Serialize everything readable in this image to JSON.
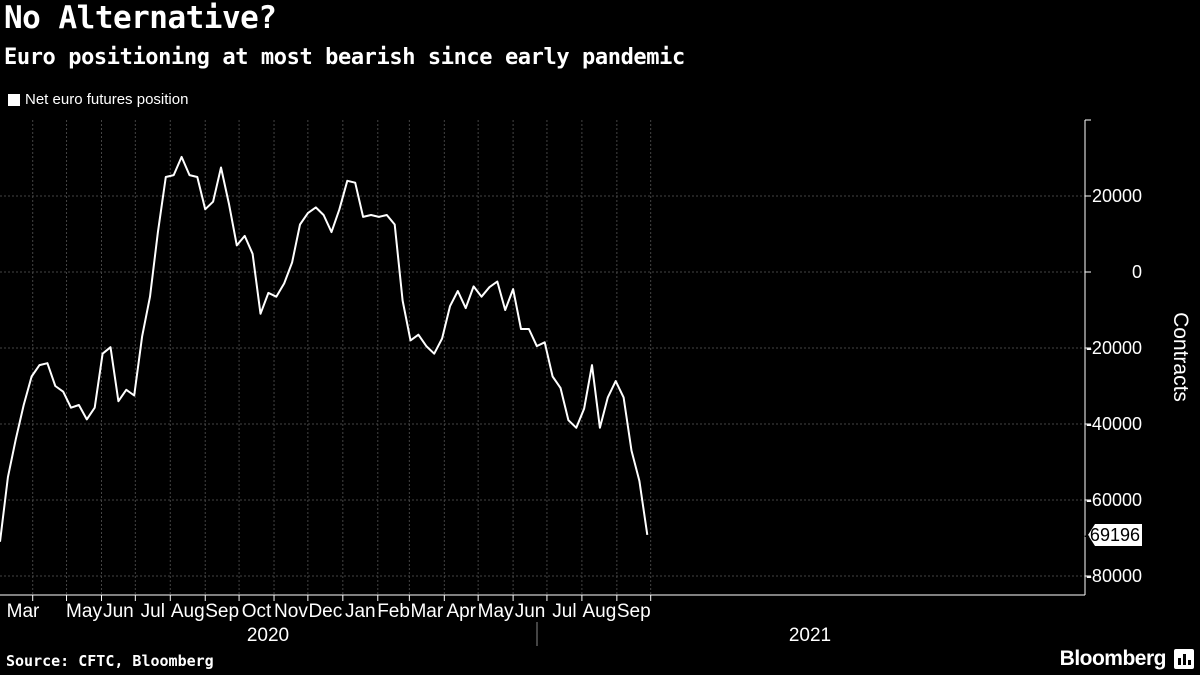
{
  "title": "No Alternative?",
  "subtitle": "Euro positioning at most bearish since early pandemic",
  "source": "Source: CFTC, Bloomberg",
  "brand": "Bloomberg",
  "colors": {
    "background": "#000000",
    "line": "#ffffff",
    "grid": "#444444",
    "text": "#ffffff"
  },
  "chart_data": {
    "type": "line",
    "title": "No Alternative?",
    "subtitle": "Euro positioning at most bearish since early pandemic",
    "ylabel": "Contracts",
    "ylim": [
      -85000,
      40000
    ],
    "yticks": [
      -80000,
      -60000,
      -40000,
      -20000,
      0,
      20000
    ],
    "y_axis_position": "right",
    "grid": true,
    "legend": "top-left",
    "x_month_labels": [
      "Mar",
      "May",
      "Jun",
      "Jul",
      "Aug",
      "Sep",
      "Oct",
      "Nov",
      "Dec",
      "Jan",
      "Feb",
      "Mar",
      "Apr",
      "May",
      "Jun",
      "Jul",
      "Aug",
      "Sep"
    ],
    "x_year_labels": [
      "2020",
      "2021"
    ],
    "last_value_label": "-69196",
    "series": [
      {
        "name": "Net euro futures position",
        "x": [
          "2020-03-03",
          "2020-03-10",
          "2020-03-17",
          "2020-03-24",
          "2020-03-31",
          "2020-04-07",
          "2020-04-14",
          "2020-04-21",
          "2020-04-28",
          "2020-05-05",
          "2020-05-12",
          "2020-05-19",
          "2020-05-26",
          "2020-06-02",
          "2020-06-09",
          "2020-06-16",
          "2020-06-23",
          "2020-06-30",
          "2020-07-07",
          "2020-07-14",
          "2020-07-21",
          "2020-07-28",
          "2020-08-04",
          "2020-08-11",
          "2020-08-18",
          "2020-08-25",
          "2020-09-01",
          "2020-09-08",
          "2020-09-15",
          "2020-09-22",
          "2020-09-29",
          "2020-10-06",
          "2020-10-13",
          "2020-10-20",
          "2020-10-27",
          "2020-11-03",
          "2020-11-10",
          "2020-11-17",
          "2020-11-24",
          "2020-12-01",
          "2020-12-08",
          "2020-12-15",
          "2020-12-22",
          "2020-12-29",
          "2021-01-05",
          "2021-01-12",
          "2021-01-19",
          "2021-01-26",
          "2021-02-02",
          "2021-02-09",
          "2021-02-16",
          "2021-02-23",
          "2021-03-02",
          "2021-03-09",
          "2021-03-16",
          "2021-03-23",
          "2021-03-30",
          "2021-04-06",
          "2021-04-13",
          "2021-04-20",
          "2021-04-27",
          "2021-05-04",
          "2021-05-11",
          "2021-05-18",
          "2021-05-25",
          "2021-06-01",
          "2021-06-08",
          "2021-06-15",
          "2021-06-22",
          "2021-06-29",
          "2021-07-06",
          "2021-07-13",
          "2021-07-20",
          "2021-07-27",
          "2021-08-03",
          "2021-08-10",
          "2021-08-17",
          "2021-08-24",
          "2021-08-31",
          "2021-09-07",
          "2021-09-14",
          "2021-09-21",
          "2021-09-28"
        ],
        "values": [
          -71000,
          -54000,
          -44000,
          -35000,
          -27500,
          -24500,
          -24000,
          -30000,
          -31500,
          -35700,
          -35000,
          -38800,
          -35700,
          -21500,
          -19800,
          -34000,
          -31000,
          -32500,
          -17000,
          -6500,
          10500,
          25000,
          25500,
          30300,
          25500,
          25000,
          16500,
          18500,
          27500,
          18000,
          7000,
          9500,
          4800,
          -11000,
          -5500,
          -6500,
          -3000,
          2500,
          12500,
          15500,
          17000,
          15000,
          10500,
          16500,
          24000,
          23500,
          14500,
          15000,
          14500,
          15000,
          12500,
          -7500,
          -18000,
          -16500,
          -19500,
          -21500,
          -17500,
          -9000,
          -5000,
          -9500,
          -3800,
          -6500,
          -4000,
          -2500,
          -10000,
          -4500,
          -15000,
          -15000,
          -19500,
          -18500,
          -27500,
          -30500,
          -39000,
          -41000,
          -36000,
          -24500,
          -41000,
          -33000,
          -28700,
          -33000,
          -47000,
          -55000,
          -69196
        ]
      }
    ]
  }
}
